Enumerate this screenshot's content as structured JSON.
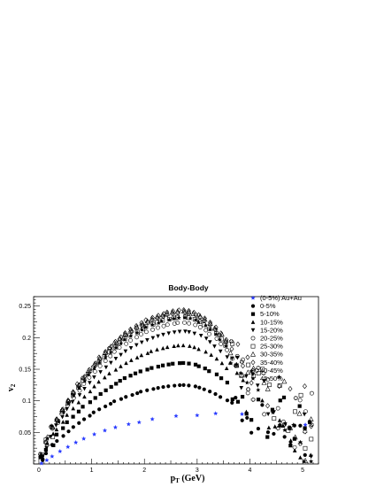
{
  "chart_data": {
    "type": "scatter",
    "title": "Body-Body",
    "xlabel_main": "p",
    "xlabel_sub": "T",
    "xlabel_rest": " (GeV)",
    "ylabel_main": "v",
    "ylabel_sub": "2",
    "xlim": [
      -0.1,
      5.3
    ],
    "ylim": [
      0,
      0.265
    ],
    "xticks": [
      0,
      1,
      2,
      3,
      4,
      5
    ],
    "yticks": [
      0.05,
      0.1,
      0.15,
      0.2,
      0.25
    ],
    "ytick_labels": [
      "0.05",
      "0.1",
      "0.15",
      "0.2",
      "0.25"
    ],
    "legend_position": "top-right",
    "reference": {
      "name": "(0-5%) Au+Au",
      "color": "#2a3cff",
      "marker": "star-filled",
      "x": [
        0.05,
        0.15,
        0.25,
        0.4,
        0.55,
        0.7,
        0.85,
        1.05,
        1.25,
        1.45,
        1.7,
        1.9,
        2.15,
        2.6,
        3.0,
        3.35,
        3.85,
        5.05
      ],
      "y": [
        0.001,
        0.006,
        0.012,
        0.02,
        0.027,
        0.034,
        0.04,
        0.047,
        0.053,
        0.058,
        0.063,
        0.066,
        0.071,
        0.076,
        0.077,
        0.08,
        0.079,
        0.062
      ]
    },
    "series": [
      {
        "name": "0-5%",
        "marker": "circle-filled",
        "peak": 0.125
      },
      {
        "name": "5-10%",
        "marker": "square-filled",
        "peak": 0.16
      },
      {
        "name": "10-15%",
        "marker": "triangle-up-filled",
        "peak": 0.188
      },
      {
        "name": "15-20%",
        "marker": "triangle-down-filled",
        "peak": 0.21
      },
      {
        "name": "20-25%",
        "marker": "circle-open",
        "peak": 0.224
      },
      {
        "name": "25-30%",
        "marker": "square-open",
        "peak": 0.233
      },
      {
        "name": "30-35%",
        "marker": "triangle-up-open",
        "peak": 0.242
      },
      {
        "name": "35-40%",
        "marker": "diamond-open",
        "peak": 0.244
      },
      {
        "name": "40-45%",
        "marker": "cross-open",
        "peak": 0.24
      },
      {
        "name": "45-50%",
        "marker": "star-filled",
        "peak": 0.232
      }
    ],
    "x_points": [
      0.05,
      0.15,
      0.25,
      0.35,
      0.45,
      0.55,
      0.65,
      0.75,
      0.85,
      0.95,
      1.05,
      1.15,
      1.25,
      1.35,
      1.45,
      1.55,
      1.65,
      1.75,
      1.85,
      1.95,
      2.05,
      2.15,
      2.25,
      2.35,
      2.45,
      2.55,
      2.65,
      2.75,
      2.85,
      2.95,
      3.05,
      3.15,
      3.25,
      3.35,
      3.45,
      3.55,
      3.65,
      3.75,
      3.85,
      3.95,
      4.05,
      4.15,
      4.25,
      4.35,
      4.45,
      4.55,
      4.65,
      4.75,
      4.85,
      4.95,
      5.05,
      5.15
    ]
  }
}
